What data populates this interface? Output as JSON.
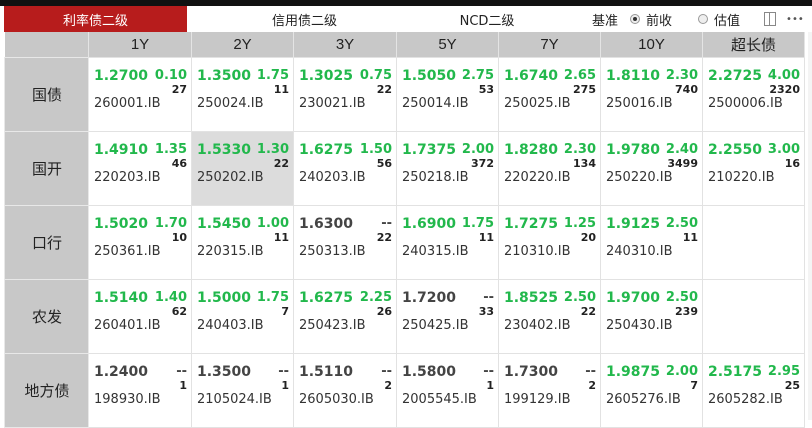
{
  "tabs": [
    "利率债二级",
    "信用债二级",
    "NCD二级"
  ],
  "basis": {
    "label": "基准",
    "options": [
      {
        "label": "前收",
        "selected": true
      },
      {
        "label": "估值",
        "selected": false
      }
    ]
  },
  "more_label": "•••",
  "colors": {
    "up": "#22b84c",
    "neutral": "#444444",
    "active_tab": "#b71c1c"
  },
  "columns": [
    "1Y",
    "2Y",
    "3Y",
    "5Y",
    "7Y",
    "10Y",
    "超长债"
  ],
  "rows": [
    {
      "label": "国债",
      "cells": [
        {
          "yield": "1.2700",
          "change": "0.10",
          "count": "27",
          "code": "260001.IB",
          "green": true
        },
        {
          "yield": "1.3500",
          "change": "1.75",
          "count": "11",
          "code": "250024.IB",
          "green": true
        },
        {
          "yield": "1.3025",
          "change": "0.75",
          "count": "22",
          "code": "230021.IB",
          "green": true
        },
        {
          "yield": "1.5050",
          "change": "2.75",
          "count": "53",
          "code": "250014.IB",
          "green": true
        },
        {
          "yield": "1.6740",
          "change": "2.65",
          "count": "275",
          "code": "250025.IB",
          "green": true
        },
        {
          "yield": "1.8110",
          "change": "2.30",
          "count": "740",
          "code": "250016.IB",
          "green": true
        },
        {
          "yield": "2.2725",
          "change": "4.00",
          "count": "2320",
          "code": "2500006.IB",
          "green": true
        }
      ]
    },
    {
      "label": "国开",
      "cells": [
        {
          "yield": "1.4910",
          "change": "1.35",
          "count": "46",
          "code": "220203.IB",
          "green": true
        },
        {
          "yield": "1.5330",
          "change": "1.30",
          "count": "22",
          "code": "250202.IB",
          "green": true,
          "selected": true
        },
        {
          "yield": "1.6275",
          "change": "1.50",
          "count": "56",
          "code": "240203.IB",
          "green": true
        },
        {
          "yield": "1.7375",
          "change": "2.00",
          "count": "372",
          "code": "250218.IB",
          "green": true
        },
        {
          "yield": "1.8280",
          "change": "2.30",
          "count": "134",
          "code": "220220.IB",
          "green": true
        },
        {
          "yield": "1.9780",
          "change": "2.40",
          "count": "3499",
          "code": "250220.IB",
          "green": true
        },
        {
          "yield": "2.2550",
          "change": "3.00",
          "count": "16",
          "code": "210220.IB",
          "green": true
        }
      ]
    },
    {
      "label": "口行",
      "cells": [
        {
          "yield": "1.5020",
          "change": "1.70",
          "count": "10",
          "code": "250361.IB",
          "green": true
        },
        {
          "yield": "1.5450",
          "change": "1.00",
          "count": "11",
          "code": "220315.IB",
          "green": true
        },
        {
          "yield": "1.6300",
          "change": "--",
          "count": "22",
          "code": "250313.IB",
          "green": false
        },
        {
          "yield": "1.6900",
          "change": "1.75",
          "count": "11",
          "code": "240315.IB",
          "green": true
        },
        {
          "yield": "1.7275",
          "change": "1.25",
          "count": "20",
          "code": "210310.IB",
          "green": true
        },
        {
          "yield": "1.9125",
          "change": "2.50",
          "count": "11",
          "code": "240310.IB",
          "green": true
        },
        null
      ]
    },
    {
      "label": "农发",
      "cells": [
        {
          "yield": "1.5140",
          "change": "1.40",
          "count": "62",
          "code": "260401.IB",
          "green": true
        },
        {
          "yield": "1.5000",
          "change": "1.75",
          "count": "7",
          "code": "240403.IB",
          "green": true
        },
        {
          "yield": "1.6275",
          "change": "2.25",
          "count": "26",
          "code": "250423.IB",
          "green": true
        },
        {
          "yield": "1.7200",
          "change": "--",
          "count": "33",
          "code": "250425.IB",
          "green": false
        },
        {
          "yield": "1.8525",
          "change": "2.50",
          "count": "22",
          "code": "230402.IB",
          "green": true
        },
        {
          "yield": "1.9700",
          "change": "2.50",
          "count": "239",
          "code": "250430.IB",
          "green": true
        },
        null
      ]
    },
    {
      "label": "地方债",
      "cells": [
        {
          "yield": "1.2400",
          "change": "--",
          "count": "1",
          "code": "198930.IB",
          "green": false
        },
        {
          "yield": "1.3500",
          "change": "--",
          "count": "1",
          "code": "2105024.IB",
          "green": false
        },
        {
          "yield": "1.5110",
          "change": "--",
          "count": "2",
          "code": "2605030.IB",
          "green": false
        },
        {
          "yield": "1.5800",
          "change": "--",
          "count": "1",
          "code": "2005545.IB",
          "green": false
        },
        {
          "yield": "1.7300",
          "change": "--",
          "count": "2",
          "code": "199129.IB",
          "green": false
        },
        {
          "yield": "1.9875",
          "change": "2.00",
          "count": "7",
          "code": "2605276.IB",
          "green": true
        },
        {
          "yield": "2.5175",
          "change": "2.95",
          "count": "25",
          "code": "2605282.IB",
          "green": true
        }
      ]
    }
  ]
}
